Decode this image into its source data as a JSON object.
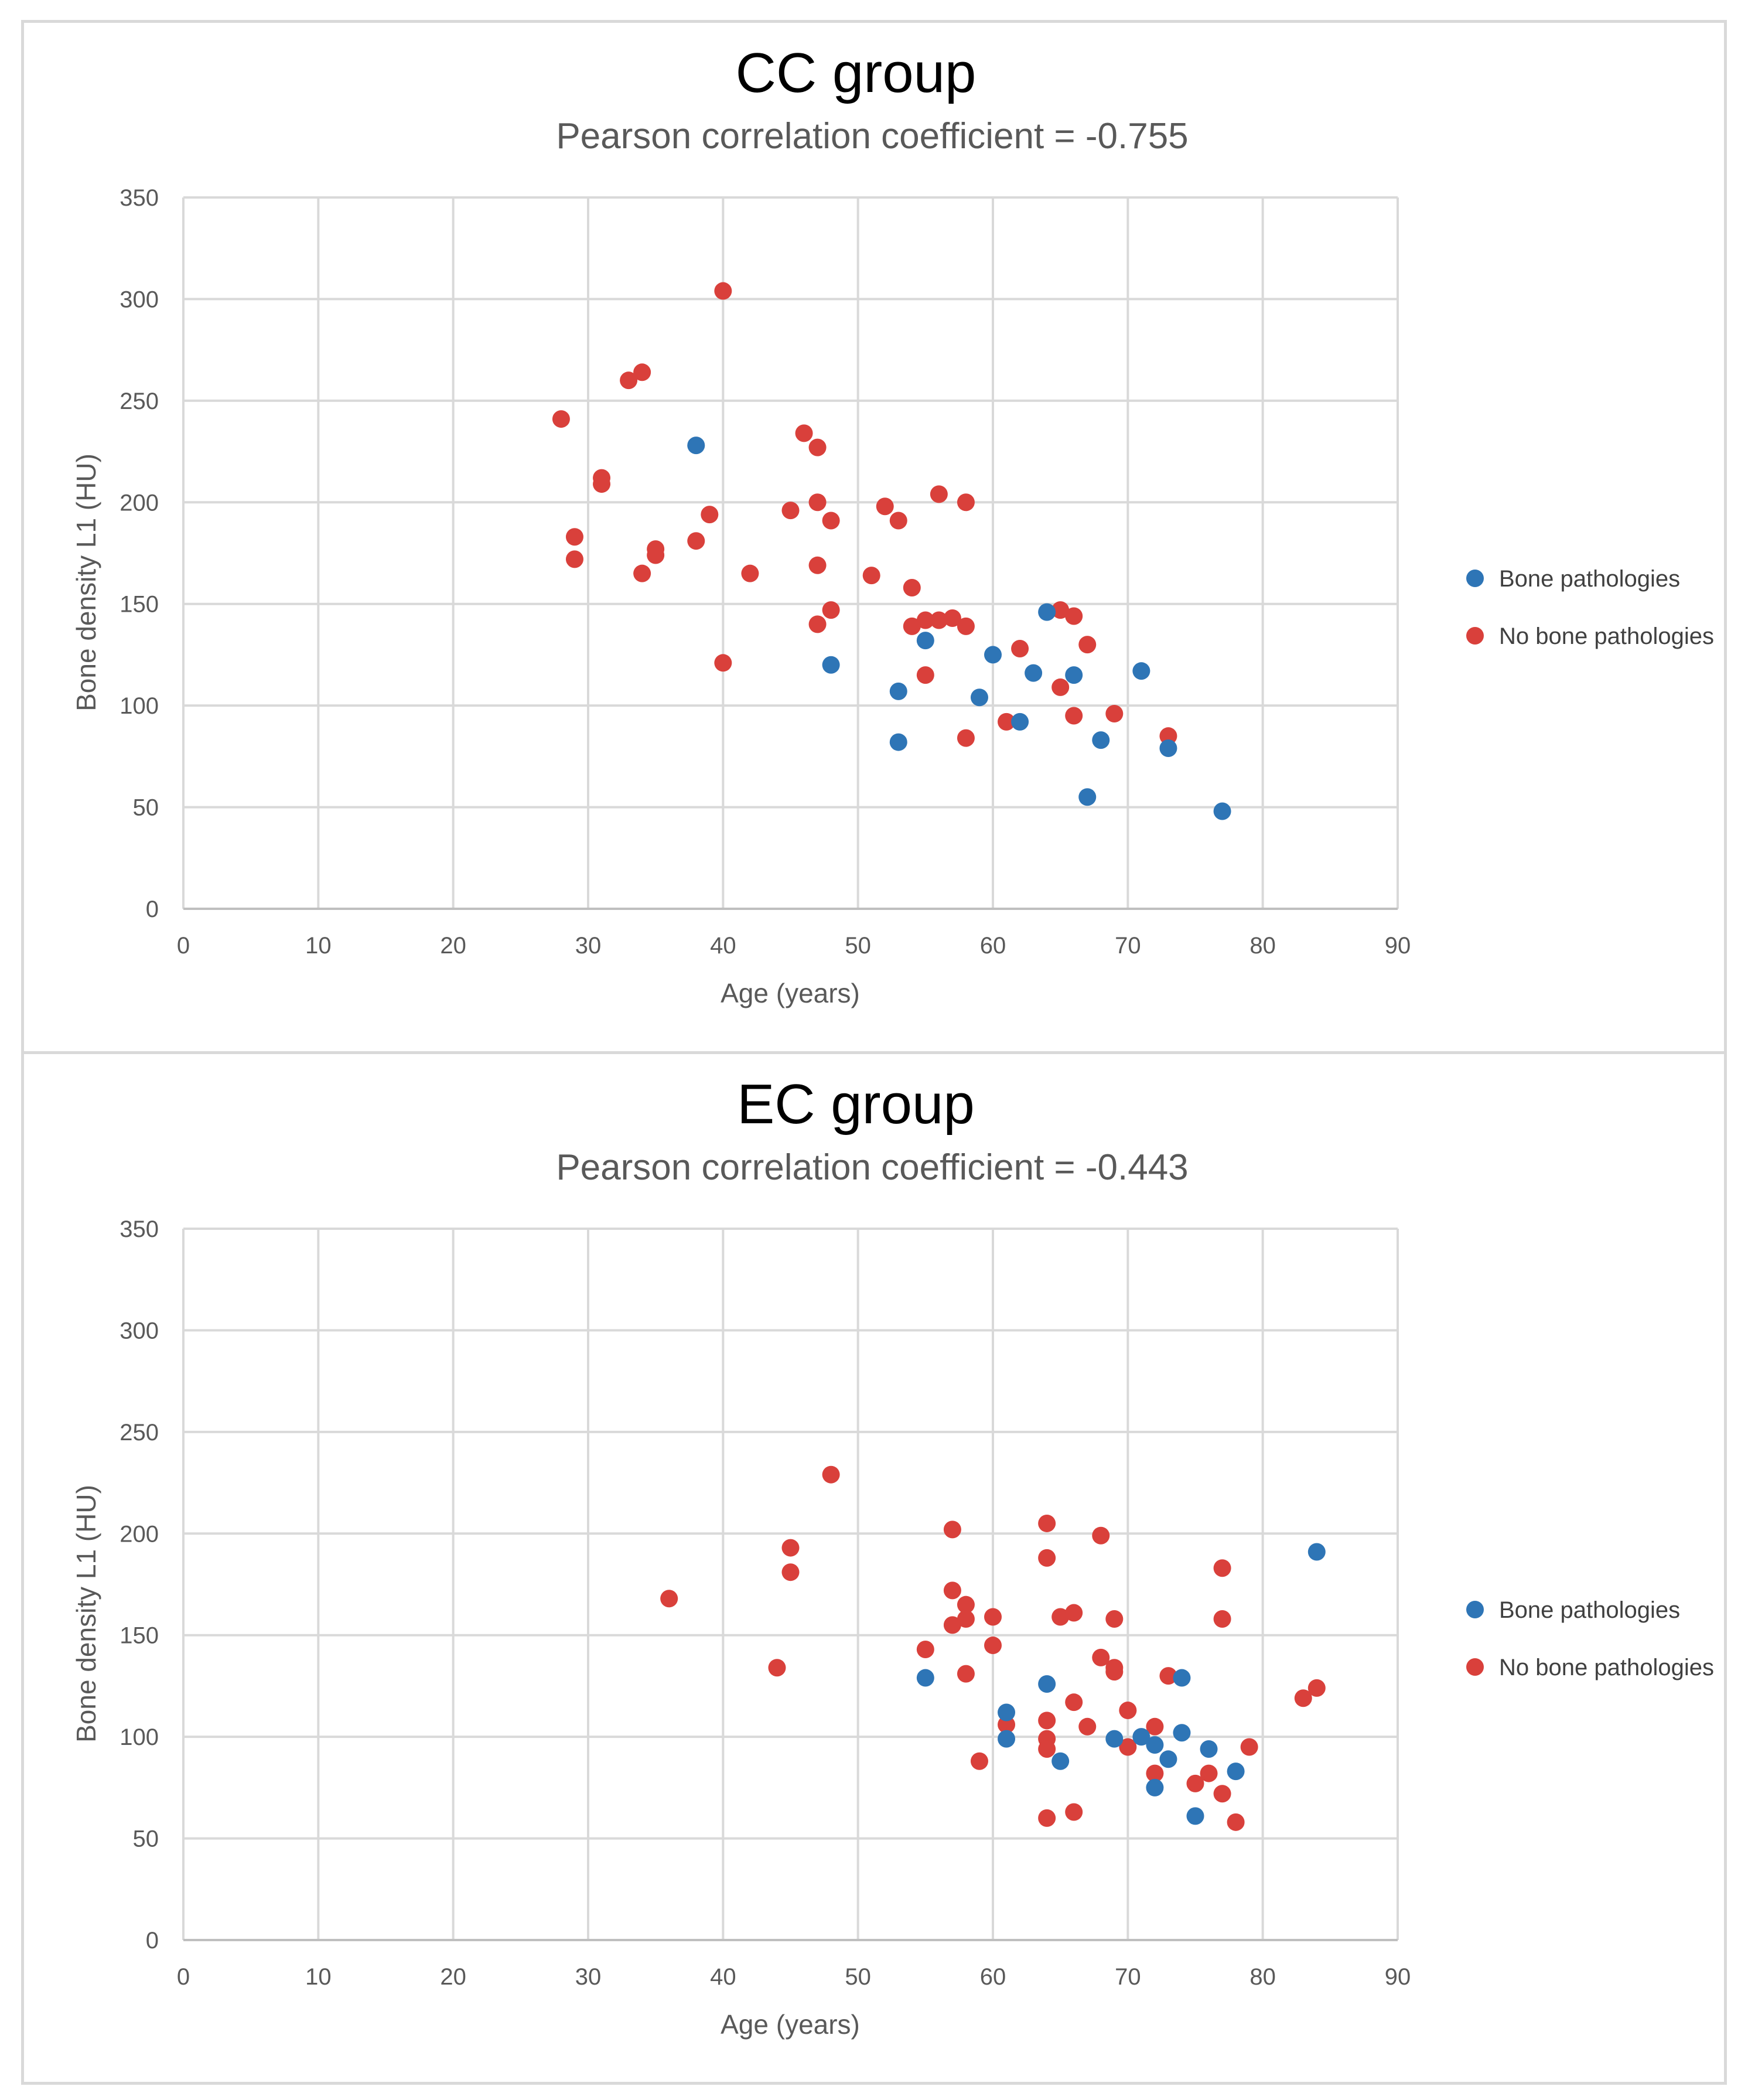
{
  "chart_data": [
    {
      "type": "scatter",
      "title": "CC group",
      "subtitle": "Pearson correlation coefficient = -0.755",
      "xlabel": "Age (years)",
      "ylabel": "Bone density L1 (HU)",
      "xlim": [
        0,
        90
      ],
      "ylim": [
        0,
        350
      ],
      "xticks": [
        0,
        10,
        20,
        30,
        40,
        50,
        60,
        70,
        80,
        90
      ],
      "yticks": [
        0,
        50,
        100,
        150,
        200,
        250,
        300,
        350
      ],
      "grid": true,
      "legend_position": "right",
      "series": [
        {
          "name": "Bone pathologies",
          "color": "#2e75b6",
          "points": [
            [
              38,
              228
            ],
            [
              48,
              120
            ],
            [
              53,
              107
            ],
            [
              53,
              82
            ],
            [
              55,
              132
            ],
            [
              59,
              104
            ],
            [
              60,
              125
            ],
            [
              62,
              92
            ],
            [
              63,
              116
            ],
            [
              64,
              146
            ],
            [
              66,
              115
            ],
            [
              67,
              55
            ],
            [
              68,
              83
            ],
            [
              71,
              117
            ],
            [
              73,
              79
            ],
            [
              77,
              48
            ]
          ]
        },
        {
          "name": "No bone pathologies",
          "color": "#d9403b",
          "points": [
            [
              28,
              241
            ],
            [
              29,
              183
            ],
            [
              29,
              172
            ],
            [
              31,
              212
            ],
            [
              31,
              209
            ],
            [
              33,
              260
            ],
            [
              34,
              264
            ],
            [
              34,
              165
            ],
            [
              35,
              177
            ],
            [
              35,
              174
            ],
            [
              38,
              181
            ],
            [
              39,
              194
            ],
            [
              40,
              304
            ],
            [
              40,
              121
            ],
            [
              42,
              165
            ],
            [
              45,
              196
            ],
            [
              46,
              234
            ],
            [
              47,
              227
            ],
            [
              47,
              200
            ],
            [
              47,
              169
            ],
            [
              47,
              140
            ],
            [
              48,
              191
            ],
            [
              48,
              147
            ],
            [
              51,
              164
            ],
            [
              52,
              198
            ],
            [
              53,
              191
            ],
            [
              54,
              158
            ],
            [
              54,
              139
            ],
            [
              55,
              142
            ],
            [
              55,
              115
            ],
            [
              56,
              204
            ],
            [
              56,
              142
            ],
            [
              57,
              143
            ],
            [
              58,
              200
            ],
            [
              58,
              139
            ],
            [
              58,
              84
            ],
            [
              61,
              92
            ],
            [
              62,
              128
            ],
            [
              65,
              147
            ],
            [
              65,
              109
            ],
            [
              66,
              144
            ],
            [
              66,
              95
            ],
            [
              67,
              130
            ],
            [
              69,
              96
            ],
            [
              73,
              85
            ]
          ]
        }
      ]
    },
    {
      "type": "scatter",
      "title": "EC group",
      "subtitle": "Pearson correlation coefficient = -0.443",
      "xlabel": "Age (years)",
      "ylabel": "Bone density L1 (HU)",
      "xlim": [
        0,
        90
      ],
      "ylim": [
        0,
        350
      ],
      "xticks": [
        0,
        10,
        20,
        30,
        40,
        50,
        60,
        70,
        80,
        90
      ],
      "yticks": [
        0,
        50,
        100,
        150,
        200,
        250,
        300,
        350
      ],
      "grid": true,
      "legend_position": "right",
      "series": [
        {
          "name": "Bone pathologies",
          "color": "#2e75b6",
          "points": [
            [
              55,
              129
            ],
            [
              61,
              112
            ],
            [
              61,
              99
            ],
            [
              64,
              126
            ],
            [
              65,
              88
            ],
            [
              69,
              99
            ],
            [
              71,
              100
            ],
            [
              72,
              96
            ],
            [
              72,
              75
            ],
            [
              73,
              89
            ],
            [
              74,
              129
            ],
            [
              74,
              102
            ],
            [
              75,
              61
            ],
            [
              76,
              94
            ],
            [
              78,
              83
            ],
            [
              84,
              191
            ]
          ]
        },
        {
          "name": "No bone pathologies",
          "color": "#d9403b",
          "points": [
            [
              36,
              168
            ],
            [
              44,
              134
            ],
            [
              45,
              193
            ],
            [
              45,
              181
            ],
            [
              48,
              229
            ],
            [
              55,
              143
            ],
            [
              57,
              202
            ],
            [
              57,
              172
            ],
            [
              57,
              155
            ],
            [
              58,
              165
            ],
            [
              58,
              158
            ],
            [
              58,
              131
            ],
            [
              59,
              88
            ],
            [
              60,
              159
            ],
            [
              60,
              145
            ],
            [
              61,
              106
            ],
            [
              64,
              205
            ],
            [
              64,
              188
            ],
            [
              64,
              108
            ],
            [
              64,
              99
            ],
            [
              64,
              94
            ],
            [
              64,
              60
            ],
            [
              65,
              159
            ],
            [
              66,
              161
            ],
            [
              66,
              117
            ],
            [
              66,
              63
            ],
            [
              67,
              105
            ],
            [
              68,
              199
            ],
            [
              68,
              139
            ],
            [
              69,
              158
            ],
            [
              69,
              134
            ],
            [
              69,
              132
            ],
            [
              70,
              113
            ],
            [
              70,
              95
            ],
            [
              72,
              105
            ],
            [
              72,
              82
            ],
            [
              73,
              130
            ],
            [
              75,
              77
            ],
            [
              76,
              82
            ],
            [
              77,
              183
            ],
            [
              77,
              158
            ],
            [
              77,
              72
            ],
            [
              78,
              58
            ],
            [
              79,
              95
            ],
            [
              83,
              119
            ],
            [
              84,
              124
            ]
          ]
        }
      ]
    }
  ]
}
